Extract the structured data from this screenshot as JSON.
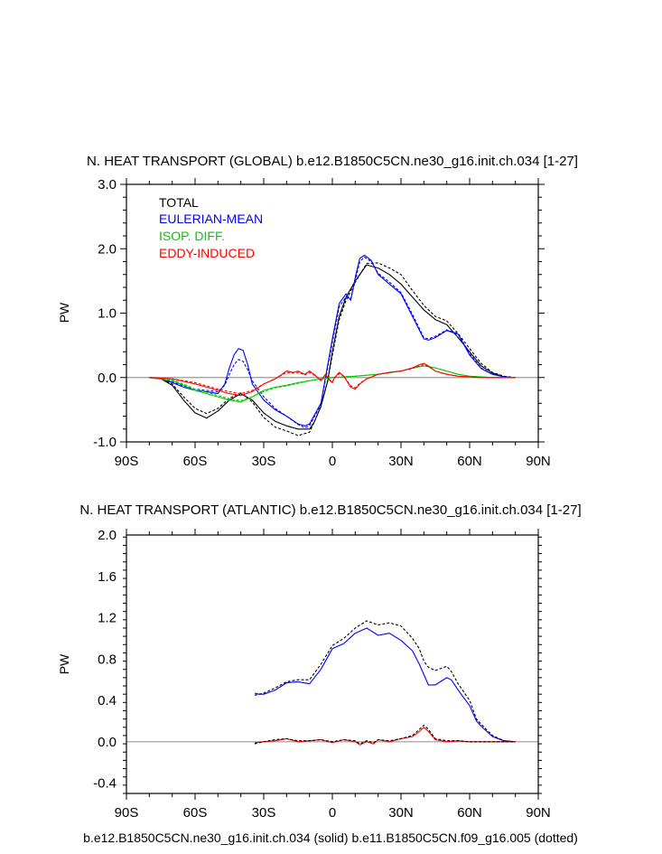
{
  "chart_data": [
    {
      "type": "line",
      "title": "N. HEAT TRANSPORT (GLOBAL) b.e12.B1850C5CN.ne30_g16.init.ch.034 [1-27]",
      "xlabel": "",
      "ylabel": "PW",
      "xlim": [
        -90,
        90
      ],
      "ylim": [
        -1.0,
        3.0
      ],
      "xticks": [
        -90,
        -60,
        -30,
        0,
        30,
        60,
        90
      ],
      "xtick_labels": [
        "90S",
        "60S",
        "30S",
        "0",
        "30N",
        "60N",
        "90N"
      ],
      "yticks": [
        -1.0,
        0.0,
        1.0,
        2.0,
        3.0
      ],
      "ytick_labels": [
        "-1.0",
        "0.0",
        "1.0",
        "2.0",
        "3.0"
      ],
      "legend": {
        "placement": "top-left",
        "entries": [
          {
            "label": "TOTAL",
            "color": "#000000"
          },
          {
            "label": "EULERIAN-MEAN",
            "color": "#0000ff"
          },
          {
            "label": "ISOP. DIFF.",
            "color": "#00cc00"
          },
          {
            "label": "EDDY-INDUCED",
            "color": "#ff0000"
          }
        ]
      },
      "series": [
        {
          "name": "TOTAL",
          "style": "solid",
          "color": "#000000",
          "x": [
            -80,
            -75,
            -70,
            -65,
            -60,
            -55,
            -50,
            -45,
            -40,
            -35,
            -30,
            -25,
            -20,
            -15,
            -10,
            -8,
            -5,
            -2,
            0,
            3,
            6,
            10,
            15,
            20,
            25,
            30,
            35,
            40,
            45,
            50,
            55,
            60,
            65,
            70,
            75,
            80
          ],
          "y": [
            0,
            -0.02,
            -0.12,
            -0.35,
            -0.55,
            -0.63,
            -0.52,
            -0.35,
            -0.25,
            -0.35,
            -0.55,
            -0.68,
            -0.75,
            -0.8,
            -0.8,
            -0.7,
            -0.45,
            -0.05,
            0.4,
            0.95,
            1.25,
            1.5,
            1.75,
            1.7,
            1.6,
            1.45,
            1.25,
            1.05,
            0.9,
            0.82,
            0.62,
            0.4,
            0.18,
            0.07,
            0.01,
            0
          ]
        },
        {
          "name": "TOTAL",
          "style": "dotted",
          "color": "#000000",
          "x": [
            -80,
            -75,
            -70,
            -65,
            -60,
            -55,
            -50,
            -45,
            -40,
            -35,
            -30,
            -25,
            -20,
            -15,
            -10,
            -8,
            -5,
            -2,
            0,
            3,
            6,
            10,
            15,
            20,
            25,
            30,
            35,
            40,
            45,
            50,
            55,
            60,
            65,
            70,
            75,
            80
          ],
          "y": [
            0,
            -0.02,
            -0.1,
            -0.3,
            -0.48,
            -0.56,
            -0.48,
            -0.32,
            -0.24,
            -0.38,
            -0.62,
            -0.77,
            -0.83,
            -0.9,
            -0.85,
            -0.7,
            -0.45,
            -0.05,
            0.35,
            0.9,
            1.2,
            1.48,
            1.77,
            1.78,
            1.7,
            1.6,
            1.35,
            1.12,
            0.95,
            0.88,
            0.68,
            0.45,
            0.22,
            0.08,
            0.02,
            0
          ]
        },
        {
          "name": "EULERIAN-MEAN",
          "style": "solid",
          "color": "#0000ff",
          "x": [
            -80,
            -75,
            -70,
            -65,
            -60,
            -55,
            -50,
            -47,
            -45,
            -43,
            -41,
            -39,
            -37,
            -35,
            -30,
            -25,
            -20,
            -15,
            -12,
            -10,
            -5,
            0,
            3,
            6,
            8,
            10,
            12,
            14,
            17,
            20,
            25,
            30,
            35,
            40,
            42,
            45,
            50,
            55,
            60,
            65,
            70,
            75,
            80
          ],
          "y": [
            0,
            -0.02,
            -0.08,
            -0.15,
            -0.2,
            -0.22,
            -0.25,
            -0.1,
            0.15,
            0.35,
            0.45,
            0.42,
            0.2,
            -0.1,
            -0.35,
            -0.5,
            -0.6,
            -0.72,
            -0.75,
            -0.72,
            -0.4,
            0.6,
            1.15,
            1.3,
            1.2,
            1.55,
            1.85,
            1.9,
            1.82,
            1.6,
            1.45,
            1.3,
            0.95,
            0.6,
            0.58,
            0.62,
            0.73,
            0.67,
            0.35,
            0.14,
            0.05,
            0.01,
            0
          ]
        },
        {
          "name": "EULERIAN-MEAN",
          "style": "dotted",
          "color": "#0000ff",
          "x": [
            -80,
            -75,
            -70,
            -65,
            -60,
            -55,
            -50,
            -47,
            -45,
            -43,
            -41,
            -39,
            -37,
            -35,
            -30,
            -25,
            -20,
            -15,
            -12,
            -10,
            -5,
            0,
            3,
            6,
            8,
            10,
            12,
            14,
            17,
            20,
            25,
            30,
            35,
            40,
            42,
            45,
            50,
            55,
            60,
            65,
            70,
            75,
            80
          ],
          "y": [
            0,
            -0.02,
            -0.07,
            -0.13,
            -0.18,
            -0.2,
            -0.22,
            -0.12,
            0.05,
            0.2,
            0.28,
            0.25,
            0.12,
            -0.05,
            -0.3,
            -0.48,
            -0.6,
            -0.73,
            -0.78,
            -0.75,
            -0.42,
            0.55,
            1.1,
            1.25,
            1.22,
            1.5,
            1.8,
            1.87,
            1.8,
            1.62,
            1.48,
            1.32,
            0.98,
            0.62,
            0.6,
            0.64,
            0.74,
            0.68,
            0.37,
            0.15,
            0.05,
            0.01,
            0
          ]
        },
        {
          "name": "ISOP. DIFF.",
          "style": "solid",
          "color": "#00cc00",
          "x": [
            -80,
            -70,
            -65,
            -60,
            -55,
            -50,
            -45,
            -40,
            -35,
            -30,
            -25,
            -20,
            -15,
            -10,
            -5,
            0,
            5,
            10,
            20,
            30,
            35,
            40,
            45,
            50,
            55,
            60,
            65,
            70,
            80
          ],
          "y": [
            0,
            -0.05,
            -0.12,
            -0.2,
            -0.25,
            -0.3,
            -0.35,
            -0.38,
            -0.3,
            -0.2,
            -0.15,
            -0.12,
            -0.08,
            -0.05,
            -0.02,
            0,
            0.01,
            0.02,
            0.05,
            0.1,
            0.15,
            0.18,
            0.15,
            0.1,
            0.05,
            0.02,
            0.01,
            0,
            0
          ]
        },
        {
          "name": "ISOP. DIFF.",
          "style": "dotted",
          "color": "#00cc00",
          "x": [
            -80,
            -70,
            -65,
            -60,
            -55,
            -50,
            -45,
            -40,
            -35,
            -30,
            -25,
            -20,
            -15,
            -10,
            -5,
            0,
            5,
            10,
            20,
            30,
            35,
            40,
            45,
            50,
            55,
            60,
            65,
            70,
            80
          ],
          "y": [
            0,
            -0.04,
            -0.1,
            -0.18,
            -0.23,
            -0.28,
            -0.33,
            -0.36,
            -0.3,
            -0.22,
            -0.16,
            -0.13,
            -0.09,
            -0.05,
            -0.02,
            0,
            0.01,
            0.02,
            0.05,
            0.1,
            0.15,
            0.18,
            0.15,
            0.1,
            0.05,
            0.02,
            0.01,
            0,
            0
          ]
        },
        {
          "name": "EDDY-INDUCED",
          "style": "solid",
          "color": "#ff0000",
          "x": [
            -80,
            -70,
            -60,
            -55,
            -50,
            -45,
            -40,
            -35,
            -30,
            -25,
            -22,
            -20,
            -17,
            -15,
            -12,
            -10,
            -8,
            -5,
            -3,
            -1,
            0,
            1,
            3,
            5,
            8,
            10,
            12,
            15,
            20,
            25,
            30,
            35,
            38,
            40,
            42,
            45,
            50,
            55,
            60,
            65,
            70,
            80
          ],
          "y": [
            0,
            -0.02,
            -0.1,
            -0.15,
            -0.2,
            -0.25,
            -0.28,
            -0.22,
            -0.1,
            -0.02,
            0.05,
            0.1,
            0.08,
            0.1,
            0.05,
            0.1,
            0.05,
            -0.05,
            0.05,
            -0.05,
            -0.08,
            0,
            0.08,
            0.02,
            -0.15,
            -0.18,
            -0.1,
            -0.02,
            0.05,
            0.08,
            0.1,
            0.15,
            0.2,
            0.22,
            0.18,
            0.1,
            0.05,
            0.02,
            0.01,
            0,
            0,
            0
          ]
        },
        {
          "name": "EDDY-INDUCED",
          "style": "dotted",
          "color": "#ff0000",
          "x": [
            -80,
            -70,
            -60,
            -55,
            -50,
            -45,
            -40,
            -35,
            -30,
            -25,
            -22,
            -20,
            -17,
            -15,
            -12,
            -10,
            -8,
            -5,
            -3,
            -1,
            0,
            1,
            3,
            5,
            8,
            10,
            12,
            15,
            20,
            25,
            30,
            35,
            38,
            40,
            42,
            45,
            50,
            55,
            60,
            65,
            70,
            80
          ],
          "y": [
            0,
            -0.02,
            -0.08,
            -0.13,
            -0.18,
            -0.22,
            -0.25,
            -0.2,
            -0.1,
            -0.02,
            0.04,
            0.08,
            0.07,
            0.08,
            0.04,
            0.08,
            0.04,
            -0.04,
            0.04,
            -0.04,
            -0.07,
            0,
            0.06,
            0.02,
            -0.13,
            -0.16,
            -0.09,
            -0.02,
            0.05,
            0.08,
            0.1,
            0.14,
            0.18,
            0.2,
            0.17,
            0.1,
            0.05,
            0.02,
            0.01,
            0,
            0,
            0
          ]
        }
      ]
    },
    {
      "type": "line",
      "title": "N. HEAT TRANSPORT (ATLANTIC) b.e12.B1850C5CN.ne30_g16.init.ch.034 [1-27]",
      "xlabel": "b.e12.B1850C5CN.ne30_g16.init.ch.034 (solid) b.e11.B1850C5CN.f09_g16.005 (dotted)",
      "ylabel": "PW",
      "xlim": [
        -90,
        90
      ],
      "ylim": [
        -0.5,
        2.0
      ],
      "xticks": [
        -90,
        -60,
        -30,
        0,
        30,
        60,
        90
      ],
      "xtick_labels": [
        "90S",
        "60S",
        "30S",
        "0",
        "30N",
        "60N",
        "90N"
      ],
      "yticks": [
        -0.4,
        0.0,
        0.4,
        0.8,
        1.2,
        1.6,
        2.0
      ],
      "ytick_labels": [
        "-0.4",
        "0.0",
        "0.4",
        "0.8",
        "1.2",
        "1.6",
        "2.0"
      ],
      "series": [
        {
          "name": "EULERIAN-MEAN",
          "style": "solid",
          "color": "#0000ff",
          "x": [
            -34,
            -32,
            -30,
            -25,
            -20,
            -15,
            -10,
            -5,
            0,
            5,
            10,
            15,
            20,
            25,
            30,
            35,
            38,
            40,
            42,
            45,
            50,
            52,
            55,
            60,
            63,
            65,
            70,
            75,
            80
          ],
          "y": [
            0.47,
            0.46,
            0.46,
            0.5,
            0.57,
            0.58,
            0.56,
            0.7,
            0.9,
            0.95,
            1.05,
            1.1,
            1.03,
            1.05,
            0.98,
            0.88,
            0.75,
            0.65,
            0.55,
            0.55,
            0.62,
            0.6,
            0.5,
            0.35,
            0.2,
            0.15,
            0.05,
            0.01,
            0
          ]
        },
        {
          "name": "EULERIAN-MEAN",
          "style": "dotted",
          "color": "#000000",
          "x": [
            -34,
            -32,
            -30,
            -25,
            -20,
            -15,
            -10,
            -5,
            0,
            5,
            10,
            15,
            20,
            25,
            30,
            35,
            38,
            40,
            42,
            45,
            50,
            52,
            55,
            60,
            63,
            65,
            70,
            75,
            80
          ],
          "y": [
            0.45,
            0.46,
            0.47,
            0.52,
            0.58,
            0.6,
            0.6,
            0.75,
            0.93,
            1.0,
            1.1,
            1.17,
            1.13,
            1.15,
            1.12,
            1.0,
            0.9,
            0.78,
            0.72,
            0.69,
            0.73,
            0.68,
            0.56,
            0.4,
            0.22,
            0.17,
            0.06,
            0.01,
            0
          ]
        },
        {
          "name": "EDDY-INDUCED",
          "style": "solid",
          "color": "#ff0000",
          "x": [
            -34,
            -30,
            -25,
            -20,
            -15,
            -10,
            -5,
            0,
            5,
            10,
            12,
            15,
            18,
            20,
            25,
            30,
            35,
            38,
            40,
            42,
            45,
            50,
            55,
            60,
            65,
            70,
            80
          ],
          "y": [
            -0.01,
            0,
            0.01,
            0.03,
            0,
            0.01,
            0.02,
            -0.01,
            0.02,
            0,
            -0.03,
            0,
            -0.02,
            0.02,
            0,
            0.03,
            0.05,
            0.1,
            0.14,
            0.1,
            0.02,
            0,
            0.01,
            0,
            0,
            0,
            0
          ]
        },
        {
          "name": "EDDY-INDUCED",
          "style": "dotted",
          "color": "#000000",
          "x": [
            -34,
            -30,
            -25,
            -20,
            -15,
            -10,
            -5,
            0,
            5,
            10,
            12,
            15,
            18,
            20,
            25,
            30,
            35,
            38,
            40,
            42,
            45,
            50,
            55,
            60,
            65,
            70,
            80
          ],
          "y": [
            -0.02,
            0,
            0.02,
            0.03,
            0.01,
            0.01,
            0.02,
            0,
            0.02,
            0.01,
            -0.02,
            0.01,
            -0.01,
            0.02,
            0.01,
            0.03,
            0.06,
            0.12,
            0.16,
            0.12,
            0.03,
            0.01,
            0.01,
            0,
            0,
            0,
            0
          ]
        }
      ]
    }
  ]
}
